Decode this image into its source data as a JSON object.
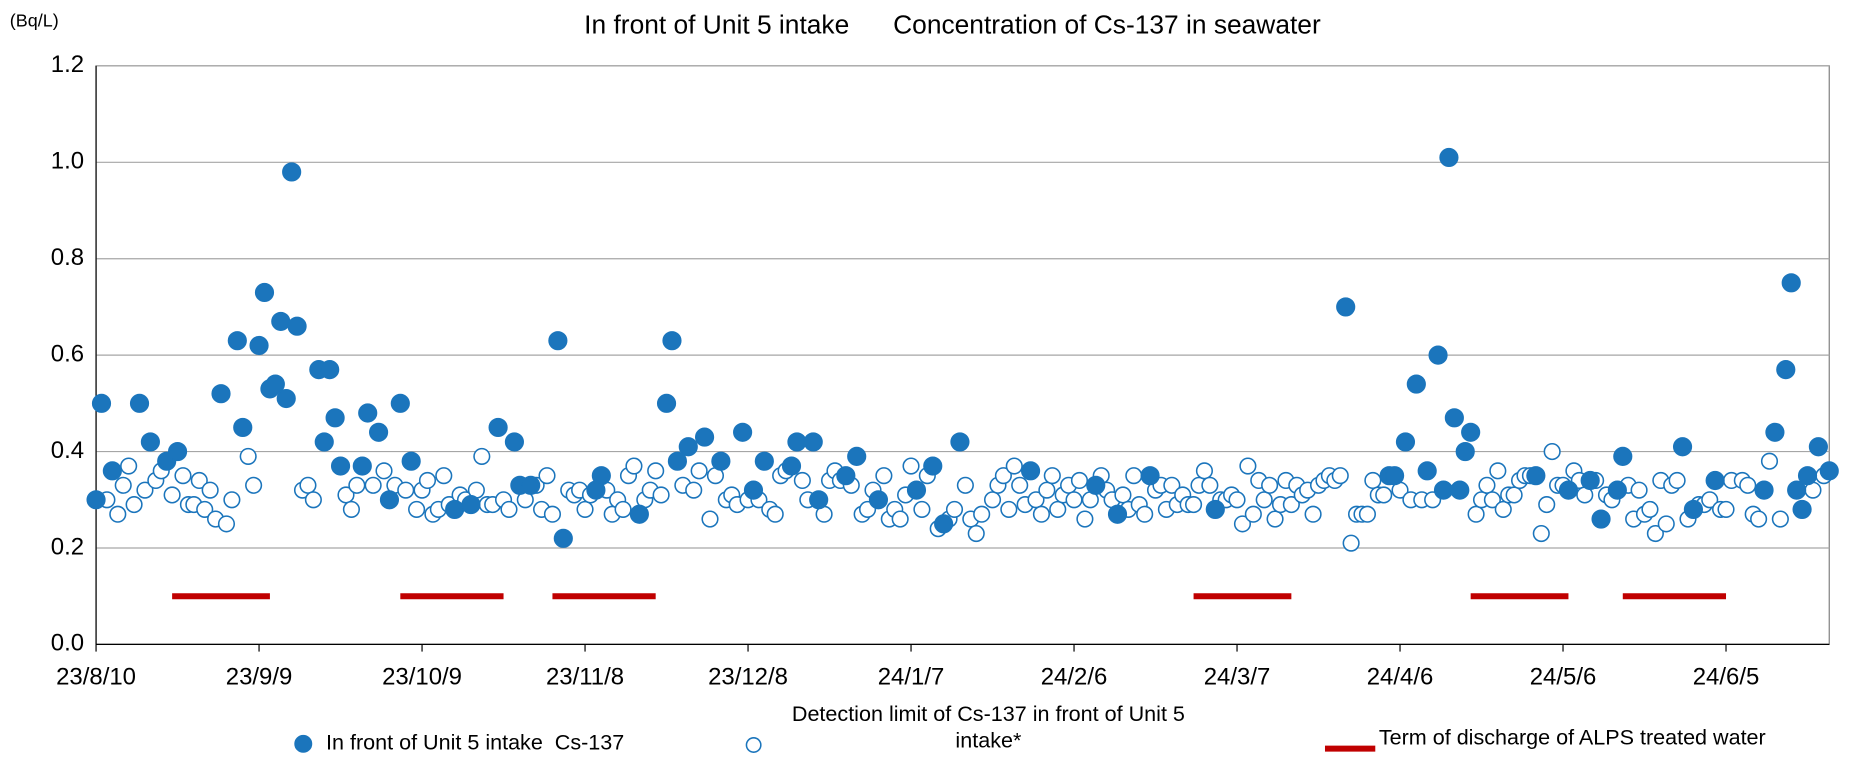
{
  "chart_data": {
    "type": "scatter",
    "title": "In front of Unit 5 intake      Concentration of Cs-137 in seawater",
    "y_unit": "(Bq/L)",
    "xlim": [
      "23/8/10",
      "24/6/24"
    ],
    "xticks": [
      "23/8/10",
      "23/9/9",
      "23/10/9",
      "23/11/8",
      "23/12/8",
      "24/1/7",
      "24/2/6",
      "24/3/7",
      "24/4/6",
      "24/5/6",
      "24/6/5"
    ],
    "ylim": [
      0,
      1.2
    ],
    "yticks": [
      {
        "value": 0,
        "label": "0.0"
      },
      0.2,
      0.4,
      0.6,
      0.8,
      {
        "value": 1,
        "label": "1.0"
      },
      1.2
    ],
    "grid": true,
    "series": [
      {
        "name": "In front of Unit 5 intake  Cs-137",
        "color": "#1b75bc",
        "filled": true,
        "x": [
          "23/8/10",
          "23/8/11",
          "23/8/13",
          "23/8/18",
          "23/8/20",
          "23/8/23",
          "23/8/25",
          "23/9/2",
          "23/9/5",
          "23/9/6",
          "23/9/9",
          "23/9/10",
          "23/9/11",
          "23/9/12",
          "23/9/13",
          "23/9/14",
          "23/9/15",
          "23/9/16",
          "23/9/20",
          "23/9/21",
          "23/9/22",
          "23/9/23",
          "23/9/24",
          "23/9/28",
          "23/9/29",
          "23/10/1",
          "23/10/3",
          "23/10/5",
          "23/10/7",
          "23/10/15",
          "23/10/18",
          "23/10/23",
          "23/10/26",
          "23/10/27",
          "23/10/29",
          "23/11/3",
          "23/11/4",
          "23/11/10",
          "23/11/11",
          "23/11/18",
          "23/11/23",
          "23/11/24",
          "23/11/25",
          "23/11/27",
          "23/11/30",
          "23/12/3",
          "23/12/7",
          "23/12/9",
          "23/12/11",
          "23/12/16",
          "23/12/17",
          "23/12/20",
          "23/12/21",
          "23/12/26",
          "23/12/28",
          "24/1/1",
          "24/1/8",
          "24/1/11",
          "24/1/13",
          "24/1/16",
          "24/1/29",
          "24/2/10",
          "24/2/14",
          "24/2/20",
          "24/3/3",
          "24/3/27",
          "24/4/4",
          "24/4/5",
          "24/4/7",
          "24/4/9",
          "24/4/11",
          "24/4/13",
          "24/4/14",
          "24/4/15",
          "24/4/16",
          "24/4/17",
          "24/4/18",
          "24/4/19",
          "24/5/1",
          "24/5/7",
          "24/5/11",
          "24/5/13",
          "24/5/16",
          "24/5/17",
          "24/5/28",
          "24/5/30",
          "24/6/3",
          "24/6/12",
          "24/6/14",
          "24/6/16",
          "24/6/17",
          "24/6/18",
          "24/6/19",
          "24/6/20",
          "24/6/22",
          "24/6/24"
        ],
        "values": [
          0.3,
          0.5,
          0.36,
          0.5,
          0.42,
          0.38,
          0.4,
          0.52,
          0.63,
          0.45,
          0.62,
          0.73,
          0.53,
          0.54,
          0.67,
          0.51,
          0.98,
          0.66,
          0.57,
          0.42,
          0.57,
          0.47,
          0.37,
          0.37,
          0.48,
          0.44,
          0.3,
          0.5,
          0.38,
          0.28,
          0.29,
          0.45,
          0.42,
          0.33,
          0.33,
          0.63,
          0.22,
          0.32,
          0.35,
          0.27,
          0.5,
          0.63,
          0.38,
          0.41,
          0.43,
          0.38,
          0.44,
          0.32,
          0.38,
          0.37,
          0.42,
          0.42,
          0.3,
          0.35,
          0.39,
          0.3,
          0.32,
          0.37,
          0.25,
          0.42,
          0.36,
          0.33,
          0.27,
          0.35,
          0.28,
          0.7,
          0.35,
          0.35,
          0.42,
          0.54,
          0.36,
          0.6,
          0.32,
          1.01,
          0.47,
          0.32,
          0.4,
          0.44,
          0.35,
          0.32,
          0.34,
          0.26,
          0.32,
          0.39,
          0.41,
          0.28,
          0.34,
          0.32,
          0.44,
          0.57,
          0.75,
          0.32,
          0.28,
          0.35,
          0.41,
          0.36
        ]
      },
      {
        "name": "Detection limit of Cs-137 in front of Unit 5 intake*",
        "color": "#1b75bc",
        "filled": false,
        "x": [
          "23/8/12",
          "23/8/14",
          "23/8/15",
          "23/8/16",
          "23/8/17",
          "23/8/19",
          "23/8/21",
          "23/8/22",
          "23/8/24",
          "23/8/26",
          "23/8/27",
          "23/8/28",
          "23/8/29",
          "23/8/30",
          "23/8/31",
          "23/9/1",
          "23/9/3",
          "23/9/4",
          "23/9/7",
          "23/9/8",
          "23/9/17",
          "23/9/18",
          "23/9/19",
          "23/9/25",
          "23/9/26",
          "23/9/27",
          "23/9/30",
          "23/10/2",
          "23/10/4",
          "23/10/6",
          "23/10/8",
          "23/10/9",
          "23/10/10",
          "23/10/11",
          "23/10/12",
          "23/10/13",
          "23/10/14",
          "23/10/16",
          "23/10/17",
          "23/10/19",
          "23/10/20",
          "23/10/21",
          "23/10/22",
          "23/10/24",
          "23/10/25",
          "23/10/28",
          "23/10/30",
          "23/10/31",
          "23/11/1",
          "23/11/2",
          "23/11/5",
          "23/11/6",
          "23/11/7",
          "23/11/8",
          "23/11/9",
          "23/11/12",
          "23/11/13",
          "23/11/14",
          "23/11/15",
          "23/11/16",
          "23/11/17",
          "23/11/19",
          "23/11/20",
          "23/11/21",
          "23/11/22",
          "23/11/26",
          "23/11/28",
          "23/11/29",
          "23/12/1",
          "23/12/2",
          "23/12/4",
          "23/12/5",
          "23/12/6",
          "23/12/8",
          "23/12/10",
          "23/12/12",
          "23/12/13",
          "23/12/14",
          "23/12/15",
          "23/12/18",
          "23/12/19",
          "23/12/22",
          "23/12/23",
          "23/12/24",
          "23/12/25",
          "23/12/27",
          "23/12/29",
          "23/12/30",
          "23/12/31",
          "24/1/2",
          "24/1/3",
          "24/1/4",
          "24/1/5",
          "24/1/6",
          "24/1/7",
          "24/1/9",
          "24/1/10",
          "24/1/12",
          "24/1/14",
          "24/1/15",
          "24/1/17",
          "24/1/18",
          "24/1/19",
          "24/1/20",
          "24/1/22",
          "24/1/23",
          "24/1/24",
          "24/1/25",
          "24/1/26",
          "24/1/27",
          "24/1/28",
          "24/1/30",
          "24/1/31",
          "24/2/1",
          "24/2/2",
          "24/2/3",
          "24/2/4",
          "24/2/5",
          "24/2/6",
          "24/2/7",
          "24/2/8",
          "24/2/9",
          "24/2/11",
          "24/2/12",
          "24/2/13",
          "24/2/15",
          "24/2/16",
          "24/2/17",
          "24/2/18",
          "24/2/19",
          "24/2/21",
          "24/2/22",
          "24/2/23",
          "24/2/24",
          "24/2/25",
          "24/2/26",
          "24/2/27",
          "24/2/28",
          "24/2/29",
          "24/3/1",
          "24/3/2",
          "24/3/4",
          "24/3/5",
          "24/3/6",
          "24/3/7",
          "24/3/8",
          "24/3/9",
          "24/3/10",
          "24/3/11",
          "24/3/12",
          "24/3/13",
          "24/3/14",
          "24/3/15",
          "24/3/16",
          "24/3/17",
          "24/3/18",
          "24/3/19",
          "24/3/20",
          "24/3/21",
          "24/3/22",
          "24/3/23",
          "24/3/24",
          "24/3/25",
          "24/3/26",
          "24/3/28",
          "24/3/29",
          "24/3/30",
          "24/3/31",
          "24/4/1",
          "24/4/2",
          "24/4/3",
          "24/4/6",
          "24/4/8",
          "24/4/10",
          "24/4/12",
          "24/4/20",
          "24/4/21",
          "24/4/22",
          "24/4/23",
          "24/4/24",
          "24/4/25",
          "24/4/26",
          "24/4/27",
          "24/4/28",
          "24/4/29",
          "24/4/30",
          "24/5/2",
          "24/5/3",
          "24/5/4",
          "24/5/5",
          "24/5/6",
          "24/5/8",
          "24/5/9",
          "24/5/10",
          "24/5/12",
          "24/5/14",
          "24/5/15",
          "24/5/18",
          "24/5/19",
          "24/5/20",
          "24/5/21",
          "24/5/22",
          "24/5/23",
          "24/5/24",
          "24/5/25",
          "24/5/26",
          "24/5/27",
          "24/5/29",
          "24/5/31",
          "24/6/1",
          "24/6/2",
          "24/6/4",
          "24/6/5",
          "24/6/6",
          "24/6/8",
          "24/6/9",
          "24/6/10",
          "24/6/11",
          "24/6/13",
          "24/6/15",
          "24/6/21",
          "24/6/23"
        ],
        "values": [
          0.3,
          0.27,
          0.33,
          0.37,
          0.29,
          0.32,
          0.34,
          0.36,
          0.31,
          0.35,
          0.29,
          0.29,
          0.34,
          0.28,
          0.32,
          0.26,
          0.25,
          0.3,
          0.39,
          0.33,
          0.32,
          0.33,
          0.3,
          0.31,
          0.28,
          0.33,
          0.33,
          0.36,
          0.33,
          0.32,
          0.28,
          0.32,
          0.34,
          0.27,
          0.28,
          0.35,
          0.29,
          0.31,
          0.3,
          0.32,
          0.39,
          0.29,
          0.29,
          0.3,
          0.28,
          0.3,
          0.33,
          0.28,
          0.35,
          0.27,
          0.32,
          0.31,
          0.32,
          0.28,
          0.31,
          0.32,
          0.27,
          0.3,
          0.28,
          0.35,
          0.37,
          0.3,
          0.32,
          0.36,
          0.31,
          0.33,
          0.32,
          0.36,
          0.26,
          0.35,
          0.3,
          0.31,
          0.29,
          0.3,
          0.3,
          0.28,
          0.27,
          0.35,
          0.36,
          0.34,
          0.3,
          0.27,
          0.34,
          0.36,
          0.34,
          0.33,
          0.27,
          0.28,
          0.32,
          0.35,
          0.26,
          0.28,
          0.26,
          0.31,
          0.37,
          0.28,
          0.35,
          0.24,
          0.26,
          0.28,
          0.33,
          0.26,
          0.23,
          0.27,
          0.3,
          0.33,
          0.35,
          0.28,
          0.37,
          0.33,
          0.29,
          0.3,
          0.27,
          0.32,
          0.35,
          0.28,
          0.31,
          0.33,
          0.3,
          0.34,
          0.26,
          0.3,
          0.35,
          0.32,
          0.3,
          0.31,
          0.28,
          0.35,
          0.29,
          0.27,
          0.32,
          0.33,
          0.28,
          0.33,
          0.29,
          0.31,
          0.29,
          0.29,
          0.33,
          0.36,
          0.33,
          0.3,
          0.3,
          0.31,
          0.3,
          0.25,
          0.37,
          0.27,
          0.34,
          0.3,
          0.33,
          0.26,
          0.29,
          0.34,
          0.29,
          0.33,
          0.31,
          0.32,
          0.27,
          0.33,
          0.34,
          0.35,
          0.34,
          0.35,
          0.21,
          0.27,
          0.27,
          0.27,
          0.34,
          0.31,
          0.31,
          0.32,
          0.3,
          0.3,
          0.3,
          0.27,
          0.3,
          0.33,
          0.3,
          0.36,
          0.28,
          0.31,
          0.31,
          0.34,
          0.35,
          0.35,
          0.23,
          0.29,
          0.4,
          0.33,
          0.33,
          0.36,
          0.34,
          0.31,
          0.34,
          0.31,
          0.3,
          0.33,
          0.26,
          0.32,
          0.27,
          0.28,
          0.23,
          0.34,
          0.25,
          0.33,
          0.34,
          0.26,
          0.29,
          0.29,
          0.3,
          0.28,
          0.28,
          0.34,
          0.34,
          0.33,
          0.27,
          0.26,
          0.38,
          0.26,
          0.32,
          0.35
        ]
      }
    ],
    "discharge": {
      "name": "Term of discharge of ALPS treated water",
      "color": "#c00000",
      "level": 0.1,
      "periods": [
        {
          "start": "23/8/24",
          "end": "23/9/11"
        },
        {
          "start": "23/10/5",
          "end": "23/10/24"
        },
        {
          "start": "23/11/2",
          "end": "23/11/21"
        },
        {
          "start": "24/2/28",
          "end": "24/3/17"
        },
        {
          "start": "24/4/19",
          "end": "24/5/7"
        },
        {
          "start": "24/5/17",
          "end": "24/6/5"
        }
      ]
    }
  }
}
